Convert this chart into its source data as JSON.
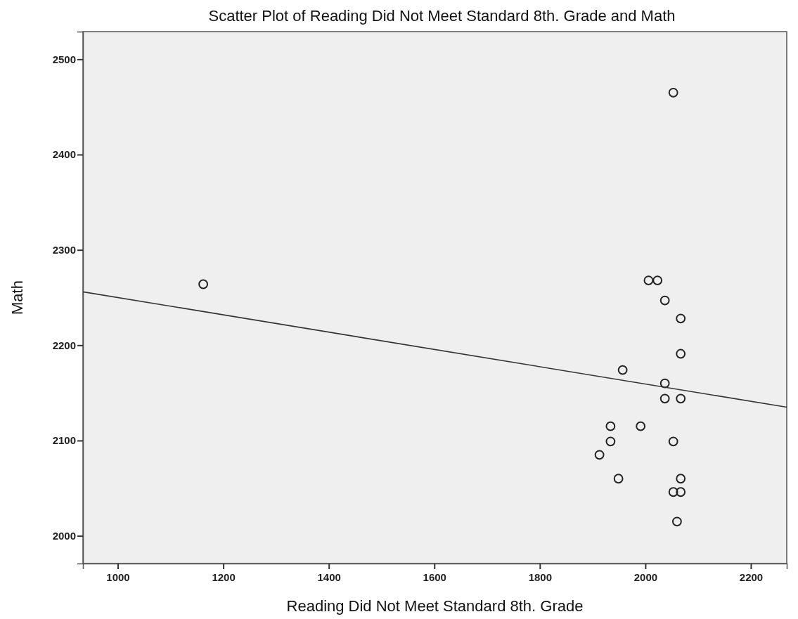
{
  "chart_data": {
    "type": "scatter",
    "title": "Scatter Plot of Reading Did Not Meet Standard 8th. Grade and Math",
    "xlabel": "Reading Did Not Meet Standard 8th. Grade",
    "ylabel": "Math",
    "xlim": [
      934,
      2268
    ],
    "xticks": [
      1000,
      1200,
      1400,
      1600,
      1800,
      2000,
      2200
    ],
    "ylim": [
      1971,
      2529
    ],
    "yticks": [
      2000,
      2100,
      2200,
      2300,
      2400,
      2500
    ],
    "grid": false,
    "series": [
      {
        "marker": "circle",
        "color": "#222222",
        "x": [
          2053,
          1162,
          2006,
          2023,
          2037,
          2067,
          2067,
          1957,
          2037,
          2037,
          2067,
          1934,
          1991,
          1934,
          2053,
          1913,
          1949,
          2067,
          2053,
          2067,
          2060
        ],
        "values": [
          2465,
          2264,
          2268,
          2268,
          2247,
          2228,
          2191,
          2174,
          2160,
          2144,
          2144,
          2115,
          2115,
          2099,
          2099,
          2085,
          2060,
          2060,
          2046,
          2046,
          2015
        ]
      },
      {
        "type": "line",
        "color": "#333333",
        "x": [
          934,
          2268
        ],
        "values": [
          2256,
          2135
        ]
      }
    ]
  }
}
